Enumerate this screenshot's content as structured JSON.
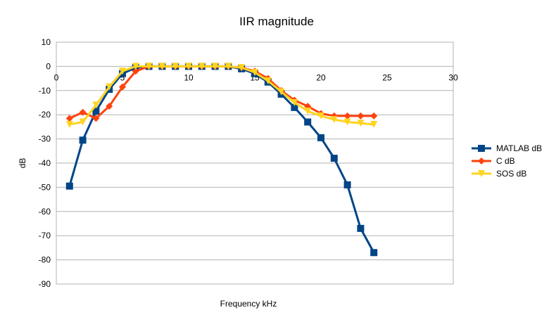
{
  "chart_data": {
    "type": "line",
    "title": "IIR magnitude",
    "xlabel": "Frequency kHz",
    "ylabel": "dB",
    "xlim": [
      0,
      30
    ],
    "ylim": [
      -90,
      10
    ],
    "xticks": [
      0,
      5,
      10,
      15,
      20,
      25,
      30
    ],
    "yticks": [
      10,
      0,
      -10,
      -20,
      -30,
      -40,
      -50,
      -60,
      -70,
      -80,
      -90
    ],
    "grid": "horizontal",
    "legend_position": "right",
    "series": [
      {
        "name": "MATLAB dB",
        "color": "#004586",
        "marker": "square",
        "x": [
          1,
          2,
          3,
          4,
          5,
          6,
          7,
          8,
          9,
          10,
          11,
          12,
          13,
          14,
          15,
          16,
          17,
          18,
          19,
          20,
          21,
          22,
          23,
          24
        ],
        "y": [
          -49.5,
          -30.5,
          -18.5,
          -9.5,
          -3,
          -0.5,
          0,
          0,
          0,
          0,
          0,
          0,
          0,
          -1,
          -3,
          -6.5,
          -11.5,
          -17,
          -23,
          -29.5,
          -38,
          -49,
          -67,
          -77
        ]
      },
      {
        "name": "C dB",
        "color": "#ff420e",
        "marker": "diamond",
        "x": [
          1,
          2,
          3,
          4,
          5,
          6,
          7,
          8,
          9,
          10,
          11,
          12,
          13,
          14,
          15,
          16,
          17,
          18,
          19,
          20,
          21,
          22,
          23,
          24
        ],
        "y": [
          -21.5,
          -19,
          -21.5,
          -16.5,
          -8.5,
          -2,
          0,
          0,
          0,
          0,
          0,
          0,
          0,
          -0.5,
          -2,
          -5,
          -10,
          -14,
          -16.5,
          -19.5,
          -20.5,
          -20.5,
          -20.5,
          -20.5
        ]
      },
      {
        "name": "SOS dB",
        "color": "#ffd320",
        "marker": "triangle-down",
        "x": [
          1,
          2,
          3,
          4,
          5,
          6,
          7,
          8,
          9,
          10,
          11,
          12,
          13,
          14,
          15,
          16,
          17,
          18,
          19,
          20,
          21,
          22,
          23,
          24
        ],
        "y": [
          -24,
          -23,
          -16,
          -8.5,
          -2,
          0,
          0,
          0,
          0,
          0,
          0,
          0,
          0,
          -0.5,
          -2.5,
          -6,
          -10.5,
          -15,
          -18.5,
          -20.5,
          -22,
          -23,
          -23.5,
          -24
        ]
      }
    ]
  }
}
